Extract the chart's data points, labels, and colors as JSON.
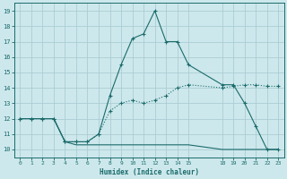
{
  "xlabel": "Humidex (Indice chaleur)",
  "background_color": "#cde8ec",
  "grid_color": "#aacdd4",
  "line_color": "#1a6b6b",
  "xlim": [
    -0.5,
    23.5
  ],
  "ylim": [
    9.5,
    19.5
  ],
  "xticks": [
    0,
    1,
    2,
    3,
    4,
    5,
    6,
    7,
    8,
    9,
    10,
    11,
    12,
    13,
    14,
    15,
    18,
    19,
    20,
    21,
    22,
    23
  ],
  "yticks": [
    10,
    11,
    12,
    13,
    14,
    15,
    16,
    17,
    18,
    19
  ],
  "line_dotted_x": [
    0,
    1,
    2,
    3,
    4,
    5,
    6,
    7,
    8,
    9,
    10,
    11,
    12,
    13,
    14,
    15,
    18,
    19,
    20,
    21,
    22,
    23
  ],
  "line_dotted_y": [
    12,
    12,
    12,
    12,
    10.5,
    10.5,
    10.5,
    11,
    12.5,
    13,
    13.2,
    13.0,
    13.2,
    13.5,
    14.0,
    14.2,
    14.0,
    14.1,
    14.2,
    14.2,
    14.1,
    14.1
  ],
  "line_main_x": [
    0,
    1,
    2,
    3,
    4,
    5,
    6,
    7,
    8,
    9,
    10,
    11,
    12,
    13,
    14,
    15,
    18,
    19,
    20,
    21,
    22,
    23
  ],
  "line_main_y": [
    12,
    12,
    12,
    12,
    10.5,
    10.5,
    10.5,
    11.0,
    13.5,
    15.5,
    17.2,
    17.5,
    19.0,
    17.0,
    17.0,
    15.5,
    14.2,
    14.2,
    13.0,
    11.5,
    10.0,
    10.0
  ],
  "line_flat_x": [
    0,
    1,
    2,
    3,
    4,
    5,
    6,
    7,
    8,
    9,
    10,
    11,
    12,
    13,
    14,
    15,
    18,
    19,
    20,
    21,
    22,
    23
  ],
  "line_flat_y": [
    12,
    12,
    12,
    12,
    10.5,
    10.3,
    10.3,
    10.3,
    10.3,
    10.3,
    10.3,
    10.3,
    10.3,
    10.3,
    10.3,
    10.3,
    10.0,
    10.0,
    10.0,
    10.0,
    10.0,
    10.0
  ]
}
